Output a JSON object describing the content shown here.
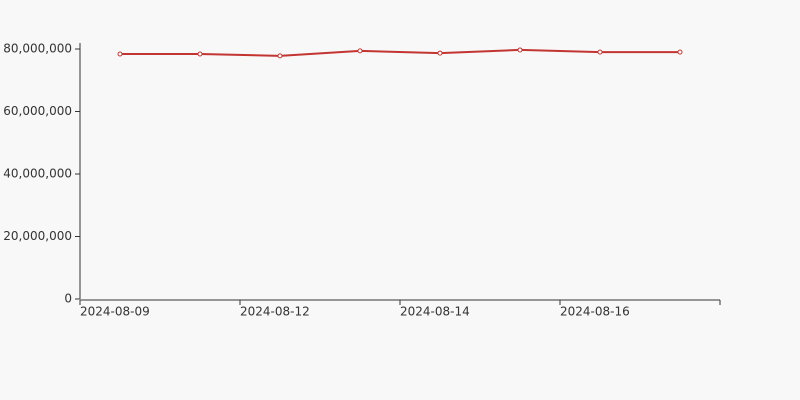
{
  "chart_data": {
    "type": "line",
    "categories": [
      "2024-08-09",
      null,
      "2024-08-12",
      null,
      "2024-08-14",
      null,
      "2024-08-16",
      null
    ],
    "series": [
      {
        "color": "#c23531",
        "values": [
          78400000,
          78400000,
          77800000,
          79400000,
          78700000,
          79700000,
          79000000,
          79000000
        ]
      }
    ],
    "ylim": [
      0,
      80000000
    ],
    "yticks": [
      0,
      {
        "value": 20000000,
        "label": "20,000,000"
      },
      {
        "value": 40000000,
        "label": "40,000,000"
      },
      {
        "value": 60000000,
        "label": "60,000,000"
      },
      {
        "value": 80000000,
        "label": "80,000,000"
      }
    ]
  }
}
